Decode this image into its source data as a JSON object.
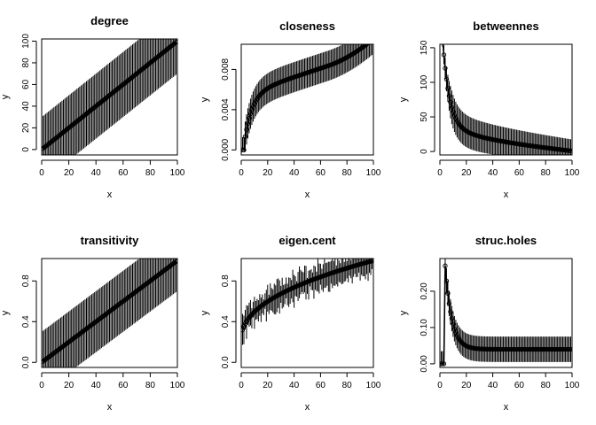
{
  "figure": {
    "background": "#ffffff",
    "line_color": "#000000"
  },
  "chart_data": [
    {
      "type": "line",
      "title": "degree",
      "xlabel": "x",
      "ylabel": "y",
      "xlim": [
        0,
        100
      ],
      "ylim": [
        -5,
        102
      ],
      "xticks": [
        0,
        20,
        40,
        60,
        80,
        100
      ],
      "yticks": [
        0,
        20,
        40,
        60,
        80,
        100
      ],
      "ytick_labels": [
        "0",
        "20",
        "40",
        "60",
        "80",
        "100"
      ],
      "grid": false,
      "curve": {
        "kind": "linear",
        "start": [
          1,
          1
        ],
        "end": [
          99,
          99
        ]
      },
      "error_band": {
        "kind": "constant",
        "half_width": 30
      },
      "x": [
        1,
        25,
        50,
        75,
        99
      ],
      "y": [
        1,
        25,
        50,
        75,
        99
      ]
    },
    {
      "type": "line",
      "title": "closeness",
      "xlabel": "x",
      "ylabel": "y",
      "xlim": [
        0,
        100
      ],
      "ylim": [
        -0.0005,
        0.0105
      ],
      "xticks": [
        0,
        20,
        40,
        60,
        80,
        100
      ],
      "yticks": [
        0,
        0.004,
        0.008
      ],
      "ytick_labels": [
        "0.000",
        "0.004",
        "0.008"
      ],
      "grid": false,
      "curve": {
        "kind": "closeness"
      },
      "error_band": {
        "kind": "constant",
        "half_width": 0.0015
      },
      "x": [
        1,
        5,
        10,
        20,
        40,
        60,
        80,
        99
      ],
      "y": [
        0,
        0.0035,
        0.0048,
        0.0057,
        0.0064,
        0.0071,
        0.008,
        0.0097
      ]
    },
    {
      "type": "line",
      "title": "betweennes",
      "xlabel": "x",
      "ylabel": "y",
      "xlim": [
        0,
        100
      ],
      "ylim": [
        -5,
        155
      ],
      "xticks": [
        0,
        20,
        40,
        60,
        80,
        100
      ],
      "yticks": [
        0,
        50,
        100,
        150
      ],
      "ytick_labels": [
        "0",
        "50",
        "100",
        "150"
      ],
      "grid": false,
      "curve": {
        "kind": "betweenness"
      },
      "error_band": {
        "kind": "proportional",
        "half_width": 25
      },
      "x": [
        2,
        5,
        10,
        20,
        40,
        60,
        80,
        99
      ],
      "y": [
        150,
        90,
        60,
        45,
        30,
        20,
        10,
        0
      ]
    },
    {
      "type": "line",
      "title": "transitivity",
      "xlabel": "x",
      "ylabel": "y",
      "xlim": [
        0,
        100
      ],
      "ylim": [
        -0.05,
        1.02
      ],
      "xticks": [
        0,
        20,
        40,
        60,
        80,
        100
      ],
      "yticks": [
        0,
        0.4,
        0.8
      ],
      "ytick_labels": [
        "0.0",
        "0.4",
        "0.8"
      ],
      "grid": false,
      "curve": {
        "kind": "linear",
        "start": [
          1,
          0.01
        ],
        "end": [
          99,
          0.99
        ]
      },
      "error_band": {
        "kind": "constant",
        "half_width": 0.3
      },
      "x": [
        1,
        25,
        50,
        75,
        99
      ],
      "y": [
        0.01,
        0.25,
        0.5,
        0.75,
        0.99
      ]
    },
    {
      "type": "line",
      "title": "eigen.cent",
      "xlabel": "x",
      "ylabel": "y",
      "xlim": [
        0,
        100
      ],
      "ylim": [
        -0.05,
        1.02
      ],
      "xticks": [
        0,
        20,
        40,
        60,
        80,
        100
      ],
      "yticks": [
        0,
        0.4,
        0.8
      ],
      "ytick_labels": [
        "0.0",
        "0.4",
        "0.8"
      ],
      "grid": false,
      "curve": {
        "kind": "eigen"
      },
      "error_band": {
        "kind": "noisy",
        "half_width": 0.12
      },
      "x": [
        2,
        10,
        20,
        40,
        60,
        80,
        99
      ],
      "y": [
        0.25,
        0.5,
        0.62,
        0.75,
        0.83,
        0.9,
        1.0
      ]
    },
    {
      "type": "line",
      "title": "struc.holes",
      "xlabel": "x",
      "ylabel": "y",
      "xlim": [
        0,
        100
      ],
      "ylim": [
        -0.01,
        0.29
      ],
      "xticks": [
        0,
        20,
        40,
        60,
        80,
        100
      ],
      "yticks": [
        0,
        0.1,
        0.2
      ],
      "ytick_labels": [
        "0.00",
        "0.10",
        "0.20"
      ],
      "grid": false,
      "curve": {
        "kind": "holes"
      },
      "error_band": {
        "kind": "constant",
        "half_width": 0.035
      },
      "x": [
        4,
        5,
        8,
        12,
        20,
        40,
        60,
        80,
        99
      ],
      "y": [
        0.27,
        0.22,
        0.15,
        0.09,
        0.06,
        0.045,
        0.04,
        0.04,
        0.04
      ]
    }
  ]
}
